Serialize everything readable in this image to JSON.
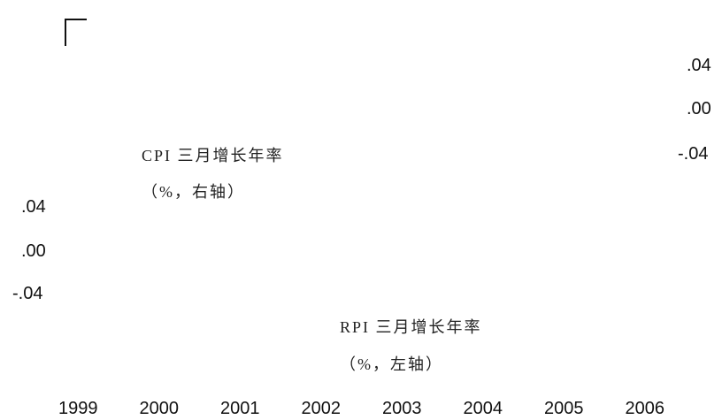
{
  "chart_data": {
    "type": "line",
    "title": "",
    "x_ticks": [
      "1999",
      "2000",
      "2001",
      "2002",
      "2003",
      "2004",
      "2005",
      "2006"
    ],
    "right_axis": {
      "ticks": [
        ".04",
        ".00",
        "-.04"
      ]
    },
    "left_axis": {
      "ticks": [
        ".04",
        ".00",
        "-.04"
      ]
    },
    "annotations": [
      {
        "lines": [
          "CPI 三月增长年率",
          "（%，右轴）"
        ]
      },
      {
        "lines": [
          "RPI 三月增长年率",
          "（%，左轴）"
        ]
      }
    ],
    "series": [],
    "grid": false,
    "legend": "none"
  }
}
